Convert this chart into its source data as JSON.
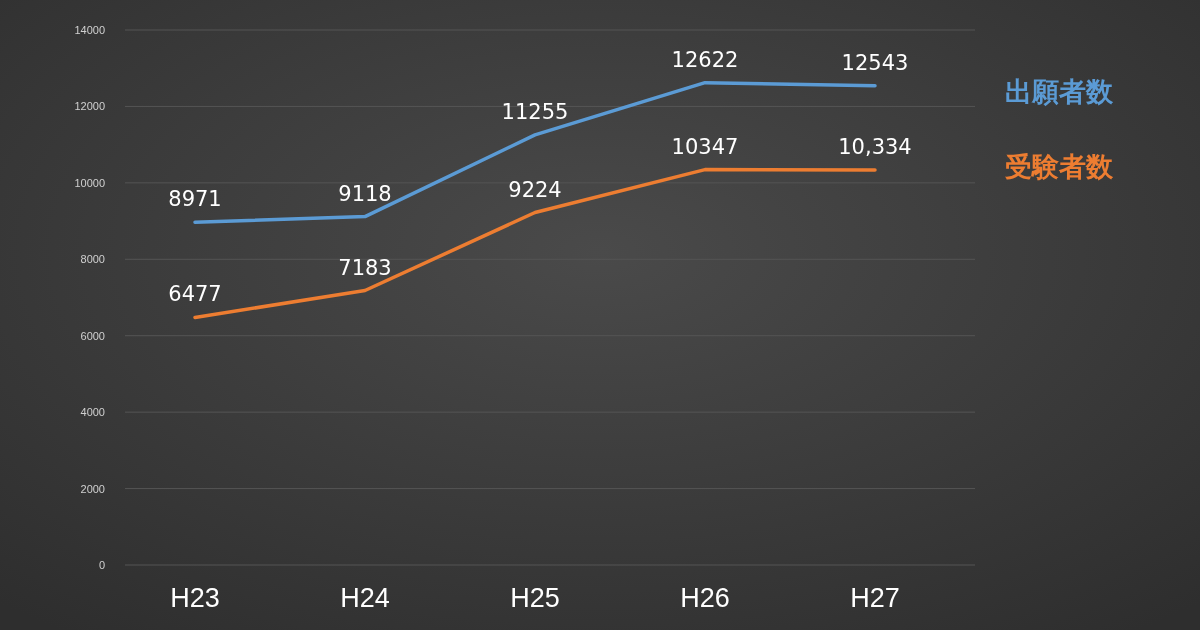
{
  "chart_data": {
    "type": "line",
    "categories": [
      "H23",
      "H24",
      "H25",
      "H26",
      "H27"
    ],
    "series": [
      {
        "name": "出願者数",
        "color": "#5b9bd5",
        "values": [
          8971,
          9118,
          11255,
          12622,
          12543
        ],
        "value_labels": [
          "8971",
          "9118",
          "11255",
          "12622",
          "12543"
        ]
      },
      {
        "name": "受験者数",
        "color": "#ed7d31",
        "values": [
          6477,
          7183,
          9224,
          10347,
          10334
        ],
        "value_labels": [
          "6477",
          "7183",
          "9224",
          "10347",
          "10,334"
        ]
      }
    ],
    "ylim": [
      0,
      14000
    ],
    "yticks": [
      0,
      2000,
      4000,
      6000,
      8000,
      10000,
      12000,
      14000
    ],
    "grid": "y",
    "legend": "right"
  }
}
